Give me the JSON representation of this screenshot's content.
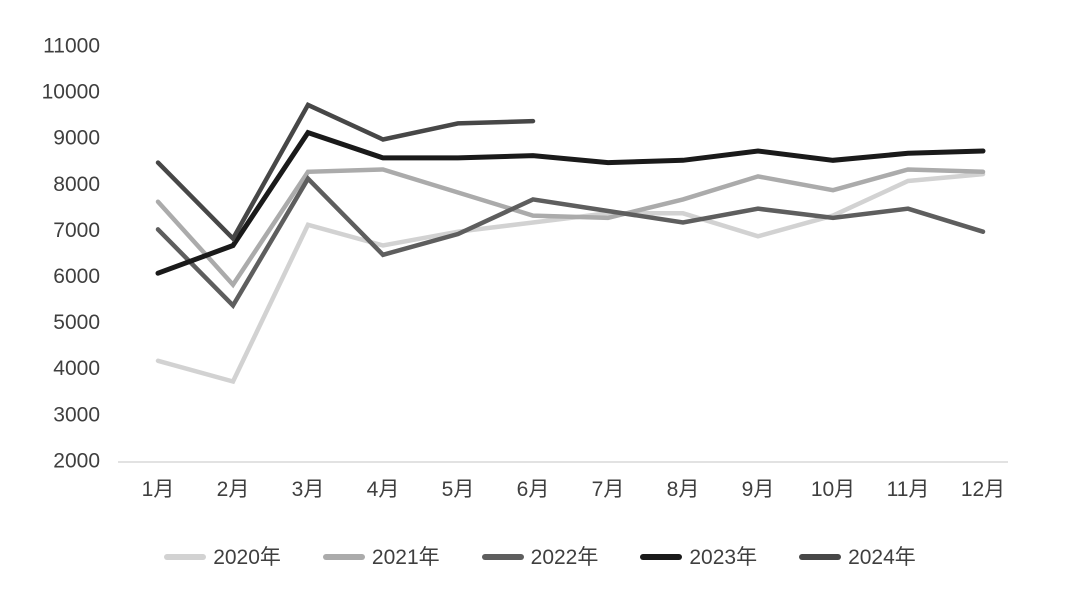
{
  "chart_data": {
    "type": "line",
    "title": "",
    "xlabel": "",
    "ylabel": "",
    "categories": [
      "1月",
      "2月",
      "3月",
      "4月",
      "5月",
      "6月",
      "7月",
      "8月",
      "9月",
      "10月",
      "11月",
      "12月"
    ],
    "series": [
      {
        "name": "2020年",
        "color": "#d2d2d2",
        "values": [
          4150,
          3700,
          7100,
          6650,
          6950,
          7150,
          7350,
          7350,
          6850,
          7300,
          8050,
          8200
        ]
      },
      {
        "name": "2021年",
        "color": "#ababab",
        "values": [
          7600,
          5800,
          8250,
          8300,
          7800,
          7300,
          7250,
          7650,
          8150,
          7850,
          8300,
          8250
        ]
      },
      {
        "name": "2022年",
        "color": "#5e5e5e",
        "values": [
          7000,
          5350,
          8100,
          6450,
          6900,
          7650,
          7400,
          7150,
          7450,
          7250,
          7450,
          6950
        ]
      },
      {
        "name": "2023年",
        "color": "#1a1a1a",
        "values": [
          6050,
          6650,
          9100,
          8550,
          8550,
          8600,
          8450,
          8500,
          8700,
          8500,
          8650,
          8700
        ]
      },
      {
        "name": "2024年",
        "color": "#474747",
        "values": [
          8450,
          6800,
          9700,
          8950,
          9300,
          9350,
          null,
          null,
          null,
          null,
          null,
          null
        ]
      }
    ],
    "yticks": [
      2000,
      3000,
      4000,
      5000,
      6000,
      7000,
      8000,
      9000,
      10000,
      11000
    ],
    "ylim": [
      2000,
      11000
    ],
    "grid": false,
    "legend_position": "bottom",
    "axis_line_color": "#d9d9d9",
    "tick_label_color": "#3f3f3f"
  }
}
